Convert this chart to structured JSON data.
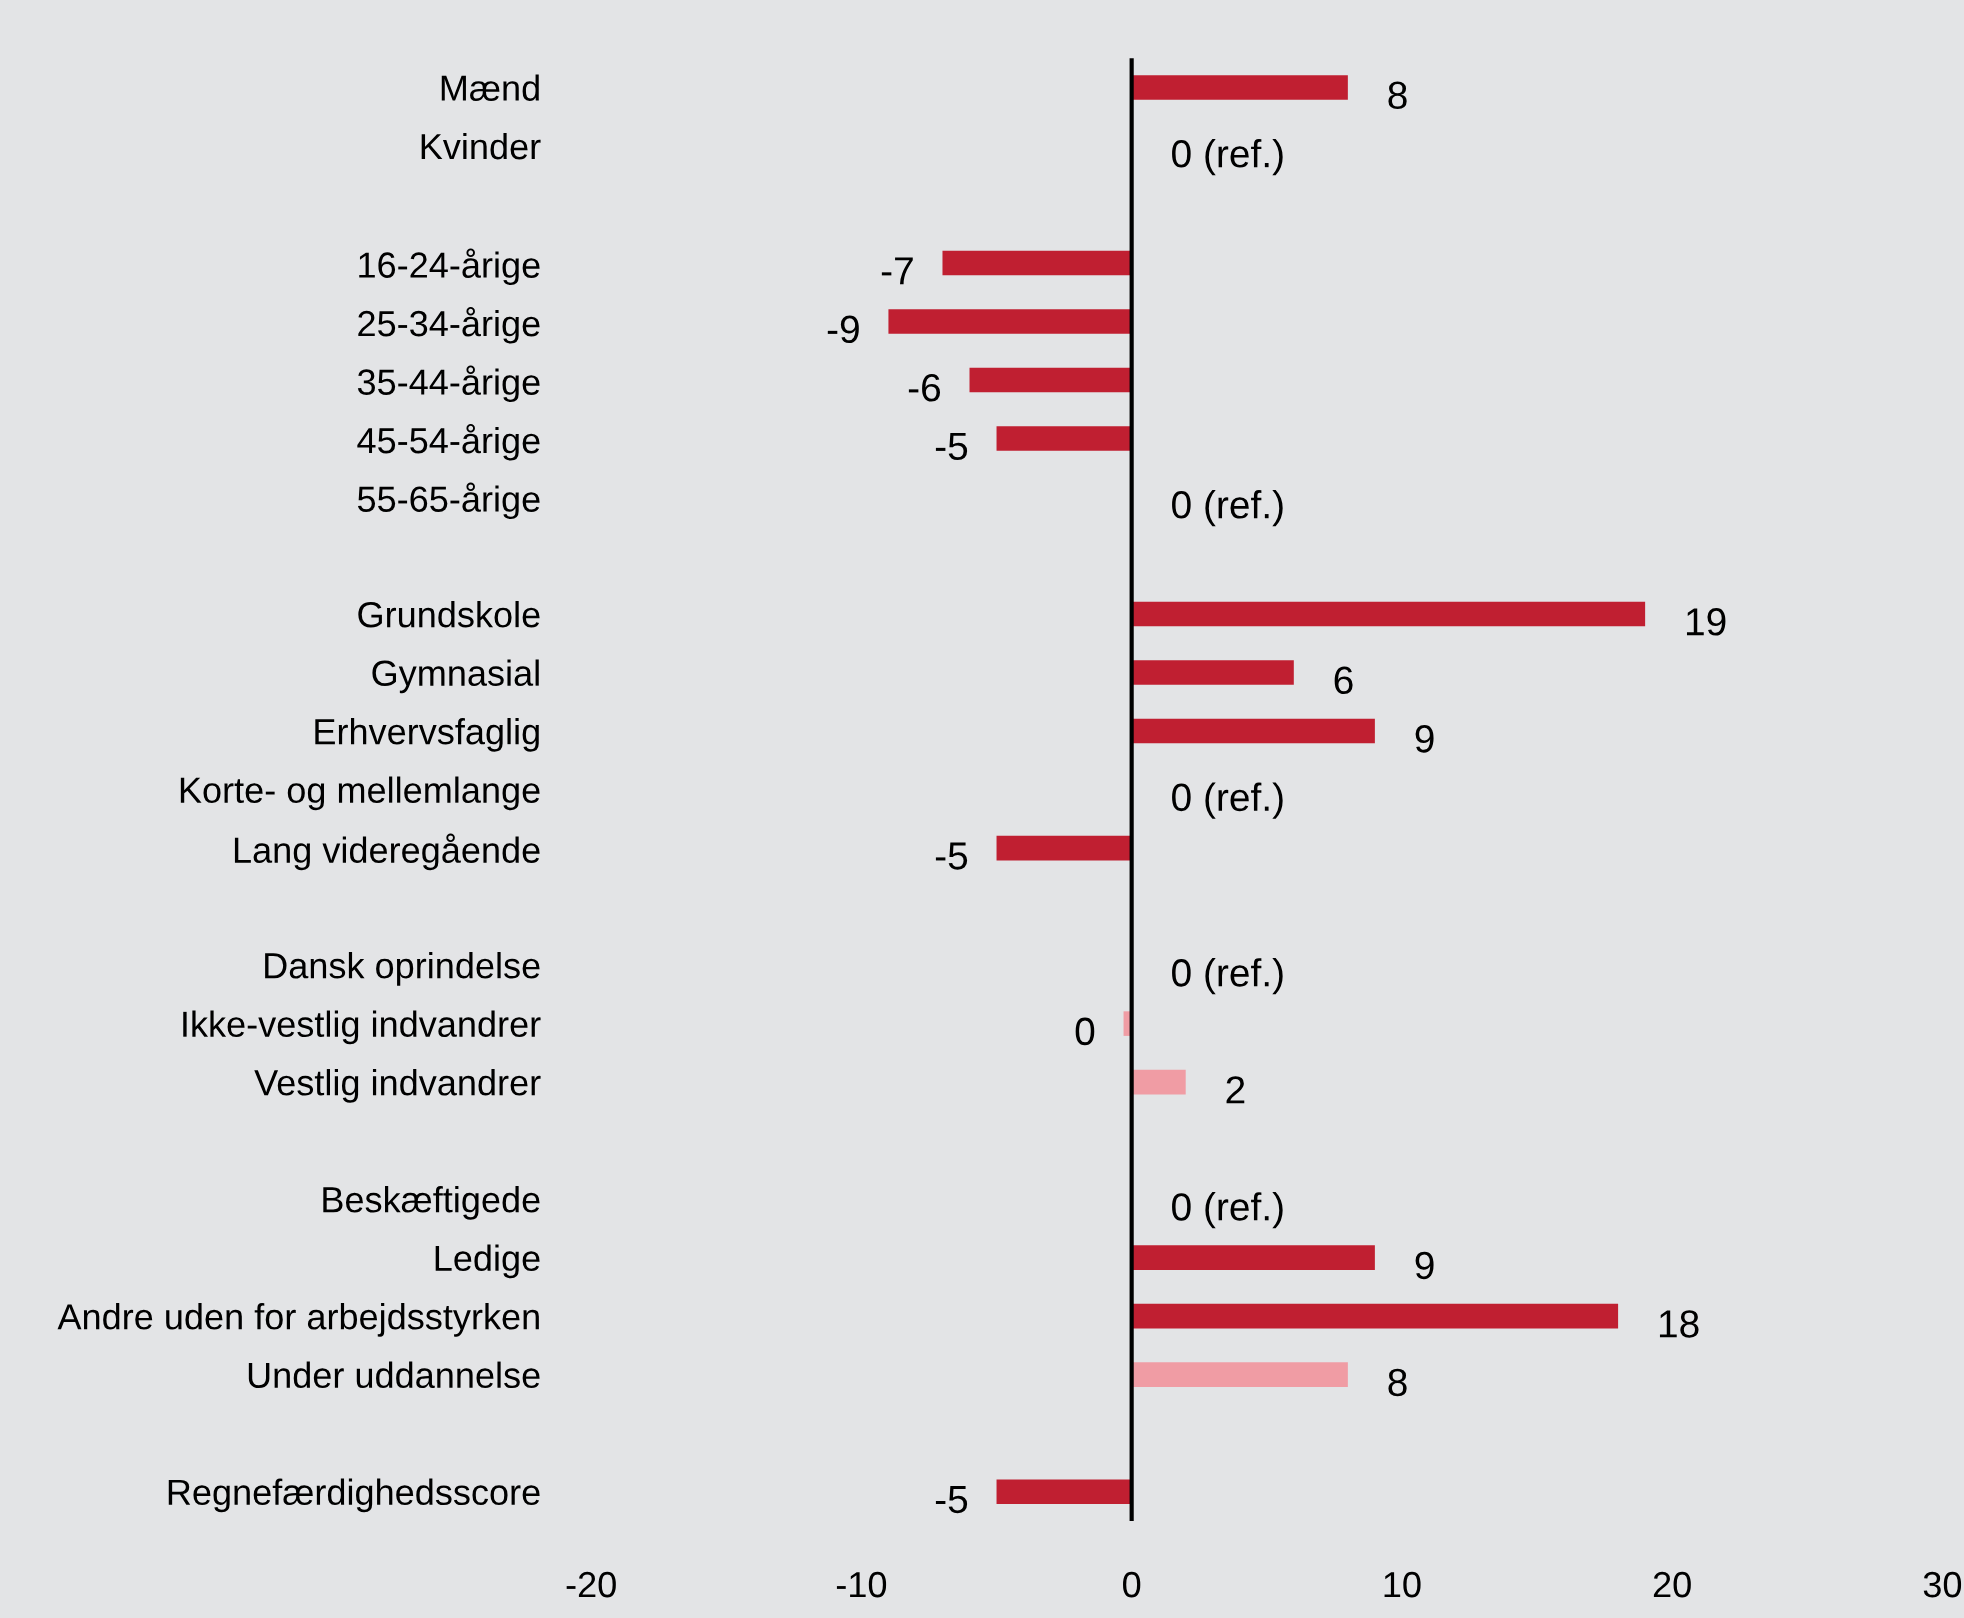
{
  "chart_data": {
    "type": "bar",
    "orientation": "horizontal",
    "categories": [
      "Mænd",
      "Kvinder",
      null,
      "16-24-årige",
      "25-34-årige",
      "35-44-årige",
      "45-54-årige",
      "55-65-årige",
      null,
      "Grundskole",
      "Gymnasial",
      "Erhvervsfaglig",
      "Korte- og mellemlange",
      "Lang videregående",
      null,
      "Dansk oprindelse",
      "Ikke-vestlig indvandrer",
      "Vestlig indvandrer",
      null,
      "Beskæftigede",
      "Ledige",
      "Andre uden for arbejdsstyrken",
      "Under uddannelse",
      null,
      "Regnefærdighedsscore"
    ],
    "values": [
      8,
      0,
      null,
      -7,
      -9,
      -6,
      -5,
      0,
      null,
      19,
      6,
      9,
      0,
      -5,
      null,
      0,
      -0.3,
      2,
      null,
      0,
      9,
      18,
      8,
      null,
      -5
    ],
    "value_labels": [
      "8",
      "0 (ref.)",
      null,
      "-7",
      "-9",
      "-6",
      "-5",
      "0 (ref.)",
      null,
      "19",
      "6",
      "9",
      "0 (ref.)",
      "-5",
      null,
      "0 (ref.)",
      "0",
      "2",
      null,
      "0 (ref.)",
      "9",
      "18",
      "8",
      null,
      "-5"
    ],
    "colors": [
      "#c01f31",
      "#c01f31",
      null,
      "#c01f31",
      "#c01f31",
      "#c01f31",
      "#c01f31",
      "#c01f31",
      null,
      "#c01f31",
      "#c01f31",
      "#c01f31",
      "#c01f31",
      "#c01f31",
      null,
      "#c01f31",
      "#f09ca4",
      "#f09ca4",
      null,
      "#c01f31",
      "#c01f31",
      "#c01f31",
      "#f09ca4",
      null,
      "#c01f31"
    ],
    "xlim": [
      -20,
      30
    ],
    "xticks": [
      -20,
      -10,
      0,
      10,
      20,
      30
    ],
    "ref_lines": [
      {
        "axis": "x",
        "value": 0,
        "color": "#000000"
      }
    ]
  }
}
